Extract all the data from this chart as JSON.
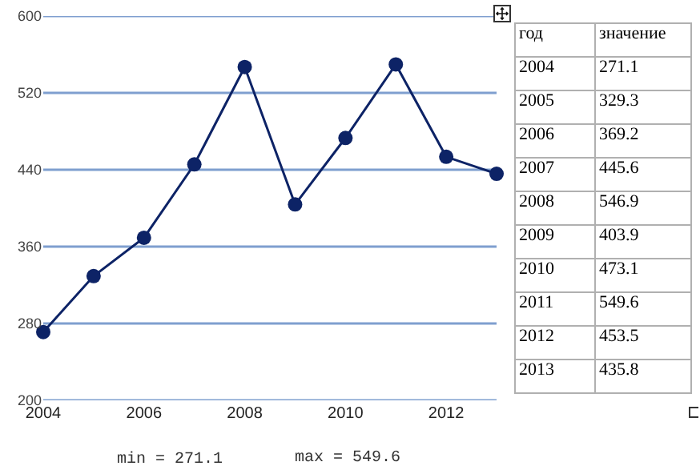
{
  "chart_data": {
    "type": "line",
    "x": [
      2004,
      2005,
      2006,
      2007,
      2008,
      2009,
      2010,
      2011,
      2012,
      2013
    ],
    "values": [
      271.1,
      329.3,
      369.2,
      445.6,
      546.9,
      403.9,
      473.1,
      549.6,
      453.5,
      435.8
    ],
    "color": "#0d2366",
    "marker": "circle",
    "line_style": "solid",
    "xlim": [
      2004,
      2013
    ],
    "xticks": [
      2004,
      2006,
      2008,
      2010,
      2012
    ],
    "ylim": [
      200,
      600
    ],
    "yticks": [
      200,
      280,
      360,
      440,
      520,
      600
    ],
    "grid": "y",
    "annotations": [
      "min = 271.1",
      "max = 549.6",
      "год",
      "значение",
      "2004",
      "271.1",
      "2005",
      "329.3",
      "2006",
      "369.2",
      "2007",
      "445.6",
      "2008",
      "546.9",
      "2009",
      "403.9",
      "2010",
      "473.1",
      "2011",
      "549.6",
      "2012",
      "453.5",
      "2013",
      "435.8"
    ]
  }
}
